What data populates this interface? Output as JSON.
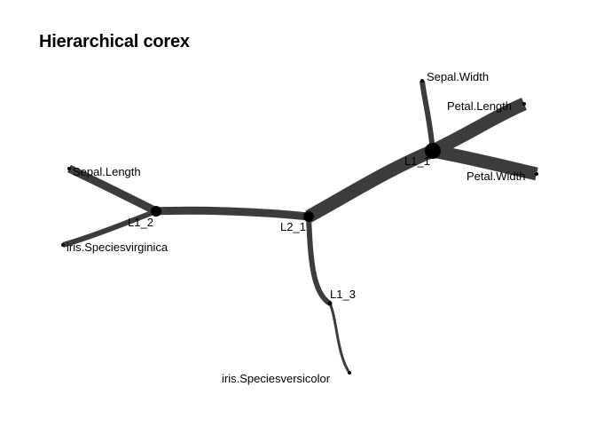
{
  "title": "Hierarchical corex",
  "colors": {
    "edge": "#3c3c3c",
    "node": "#000000",
    "background": "#ffffff",
    "text": "#000000"
  },
  "nodes": [
    {
      "id": "L2_1",
      "label": "L2_1",
      "kind": "latent"
    },
    {
      "id": "L1_1",
      "label": "L1_1",
      "kind": "latent"
    },
    {
      "id": "L1_2",
      "label": "L1_2",
      "kind": "latent"
    },
    {
      "id": "L1_3",
      "label": "L1_3",
      "kind": "latent"
    },
    {
      "id": "Sepal.Width",
      "label": "Sepal.Width",
      "kind": "observed"
    },
    {
      "id": "Petal.Length",
      "label": "Petal.Length",
      "kind": "observed"
    },
    {
      "id": "Petal.Width",
      "label": "Petal.Width",
      "kind": "observed"
    },
    {
      "id": "Sepal.Length",
      "label": "Sepal.Length",
      "kind": "observed"
    },
    {
      "id": "iris.Speciesvirginica",
      "label": "iris.Speciesvirginica",
      "kind": "observed"
    },
    {
      "id": "iris.Speciesversicolor",
      "label": "iris.Speciesversicolor",
      "kind": "observed"
    }
  ],
  "edges": [
    {
      "source": "L2_1",
      "target": "L1_1",
      "weight": "strong"
    },
    {
      "source": "L2_1",
      "target": "L1_2",
      "weight": "medium"
    },
    {
      "source": "L2_1",
      "target": "L1_3",
      "weight": "light"
    },
    {
      "source": "L1_1",
      "target": "Sepal.Width",
      "weight": "light"
    },
    {
      "source": "L1_1",
      "target": "Petal.Length",
      "weight": "strong"
    },
    {
      "source": "L1_1",
      "target": "Petal.Width",
      "weight": "strong"
    },
    {
      "source": "L1_2",
      "target": "Sepal.Length",
      "weight": "medium"
    },
    {
      "source": "L1_2",
      "target": "iris.Speciesvirginica",
      "weight": "light"
    },
    {
      "source": "L1_3",
      "target": "iris.Speciesversicolor",
      "weight": "thin"
    }
  ]
}
